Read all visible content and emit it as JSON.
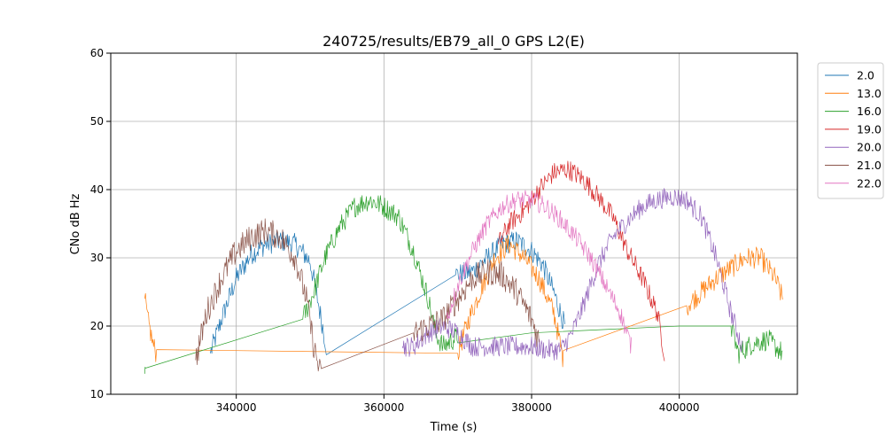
{
  "chart_data": {
    "type": "line",
    "title": "240725/results/EB79_all_0 GPS L2(E)",
    "xlabel": "Time (s)",
    "ylabel": "CNo dB Hz",
    "xlim": [
      323000,
      416000
    ],
    "ylim": [
      10,
      60
    ],
    "xticks": [
      340000,
      360000,
      380000,
      400000
    ],
    "xtick_labels": [
      "340000",
      "360000",
      "380000",
      "400000"
    ],
    "yticks": [
      10,
      20,
      30,
      40,
      50,
      60
    ],
    "ytick_labels": [
      "10",
      "20",
      "30",
      "40",
      "50",
      "60"
    ],
    "grid": true,
    "legend_position": "outside upper right",
    "series": [
      {
        "name": "2.0",
        "color": "#1f77b4",
        "noise": 1.6,
        "x": [
          336500,
          338000,
          340000,
          342000,
          344000,
          346000,
          348000,
          350000,
          351000,
          352200,
          369700,
          372000,
          374000,
          376000,
          378000,
          380000,
          381500,
          383000,
          384500
        ],
        "y": [
          16,
          21,
          27,
          30.5,
          32,
          32.5,
          32,
          29.5,
          24,
          17,
          27.5,
          28,
          30,
          32,
          32.5,
          31,
          29,
          25,
          20
        ]
      },
      {
        "name": "13.0",
        "color": "#ff7f0e",
        "noise": 1.6,
        "x": [
          327600,
          328000,
          328400,
          328800,
          329200,
          370000,
          371500,
          373000,
          375000,
          377000,
          379000,
          381000,
          383000,
          384300,
          401000,
          403000,
          405000,
          407000,
          409000,
          411000,
          413000,
          414000
        ],
        "y": [
          24,
          21,
          19,
          17,
          16,
          16,
          21,
          25,
          30,
          32,
          30,
          27,
          22,
          15,
          23,
          25,
          27,
          28.5,
          30,
          30,
          27,
          24
        ]
      },
      {
        "name": "16.0",
        "color": "#2ca02c",
        "noise": 1.6,
        "x": [
          327600,
          327700,
          349000,
          350500,
          352000,
          354000,
          356000,
          358000,
          360000,
          362000,
          364000,
          366000,
          367000,
          368000,
          370000,
          380000,
          390000,
          400000,
          407000,
          408000,
          410000,
          412000,
          414000
        ],
        "y": [
          13,
          15,
          21,
          25,
          30,
          34.5,
          37.5,
          38.5,
          37.5,
          36,
          31,
          24,
          19,
          17,
          18.5,
          19,
          19.5,
          20,
          20,
          16,
          17.5,
          18,
          16
        ]
      },
      {
        "name": "19.0",
        "color": "#d62728",
        "noise": 1.5,
        "x": [
          375500,
          377000,
          379000,
          381000,
          383000,
          385000,
          387000,
          389000,
          391000,
          393000,
          395000,
          397000,
          398000
        ],
        "y": [
          32,
          35,
          37,
          40,
          42.5,
          43,
          41.5,
          39,
          36,
          31,
          27,
          22,
          16
        ]
      },
      {
        "name": "20.0",
        "color": "#9467bd",
        "noise": 1.5,
        "x": [
          362500,
          364000,
          366000,
          368000,
          370000,
          372000,
          374000,
          376000,
          378000,
          380000,
          382000,
          384000,
          385500,
          387000,
          389000,
          391000,
          393000,
          395000,
          397000,
          399000,
          401000,
          403000,
          405000,
          407000,
          408500
        ],
        "y": [
          17,
          17,
          19,
          20,
          19,
          17,
          17,
          17,
          17,
          17,
          16.5,
          16.5,
          19,
          23,
          29,
          33,
          35.5,
          37.5,
          38.5,
          39,
          38.5,
          36,
          30,
          22,
          17
        ]
      },
      {
        "name": "21.0",
        "color": "#8c564b",
        "noise": 2.0,
        "x": [
          334500,
          336000,
          338000,
          340000,
          342000,
          344000,
          346000,
          348000,
          349500,
          350500,
          351500,
          364000,
          366000,
          368000,
          370000,
          372000,
          374000,
          376000,
          378000,
          380000,
          381000
        ],
        "y": [
          15,
          22,
          27,
          31,
          33,
          34,
          33,
          30,
          24,
          17,
          12.5,
          19,
          20,
          21,
          24,
          27,
          28,
          27.5,
          25,
          21,
          18
        ]
      },
      {
        "name": "22.0",
        "color": "#e377c2",
        "noise": 1.4,
        "x": [
          368500,
          370000,
          372000,
          374000,
          376000,
          378000,
          380000,
          382000,
          384000,
          386000,
          388000,
          390000,
          392000,
          393500
        ],
        "y": [
          21,
          26,
          31,
          35,
          37.5,
          38.5,
          38.5,
          37.5,
          35.5,
          33,
          30,
          26,
          22,
          17
        ]
      }
    ]
  }
}
